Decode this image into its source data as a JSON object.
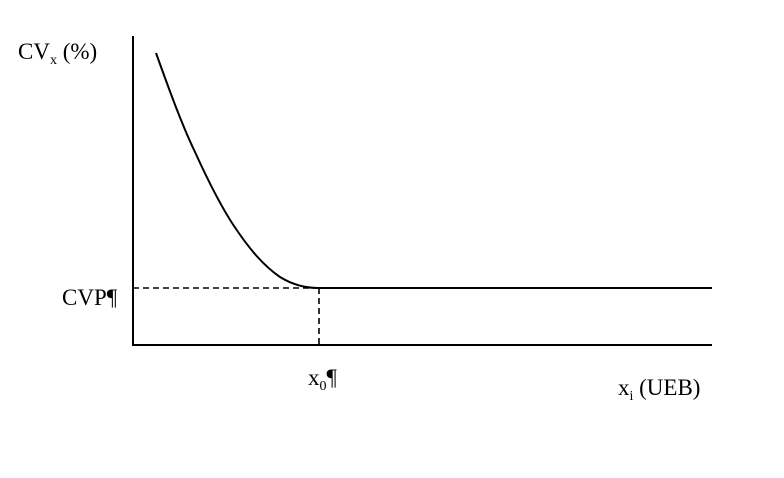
{
  "diagram": {
    "y_axis_label": {
      "main": "CV",
      "sub": "x",
      "rest": " (%)"
    },
    "x_axis_label": {
      "main": "x",
      "sub": "i",
      "rest": " (UEB)"
    },
    "y_marker_label": "CVP¶",
    "x_marker_label": {
      "main": "x",
      "sub": "0",
      "rest": "¶"
    },
    "line_color": "#000000"
  }
}
